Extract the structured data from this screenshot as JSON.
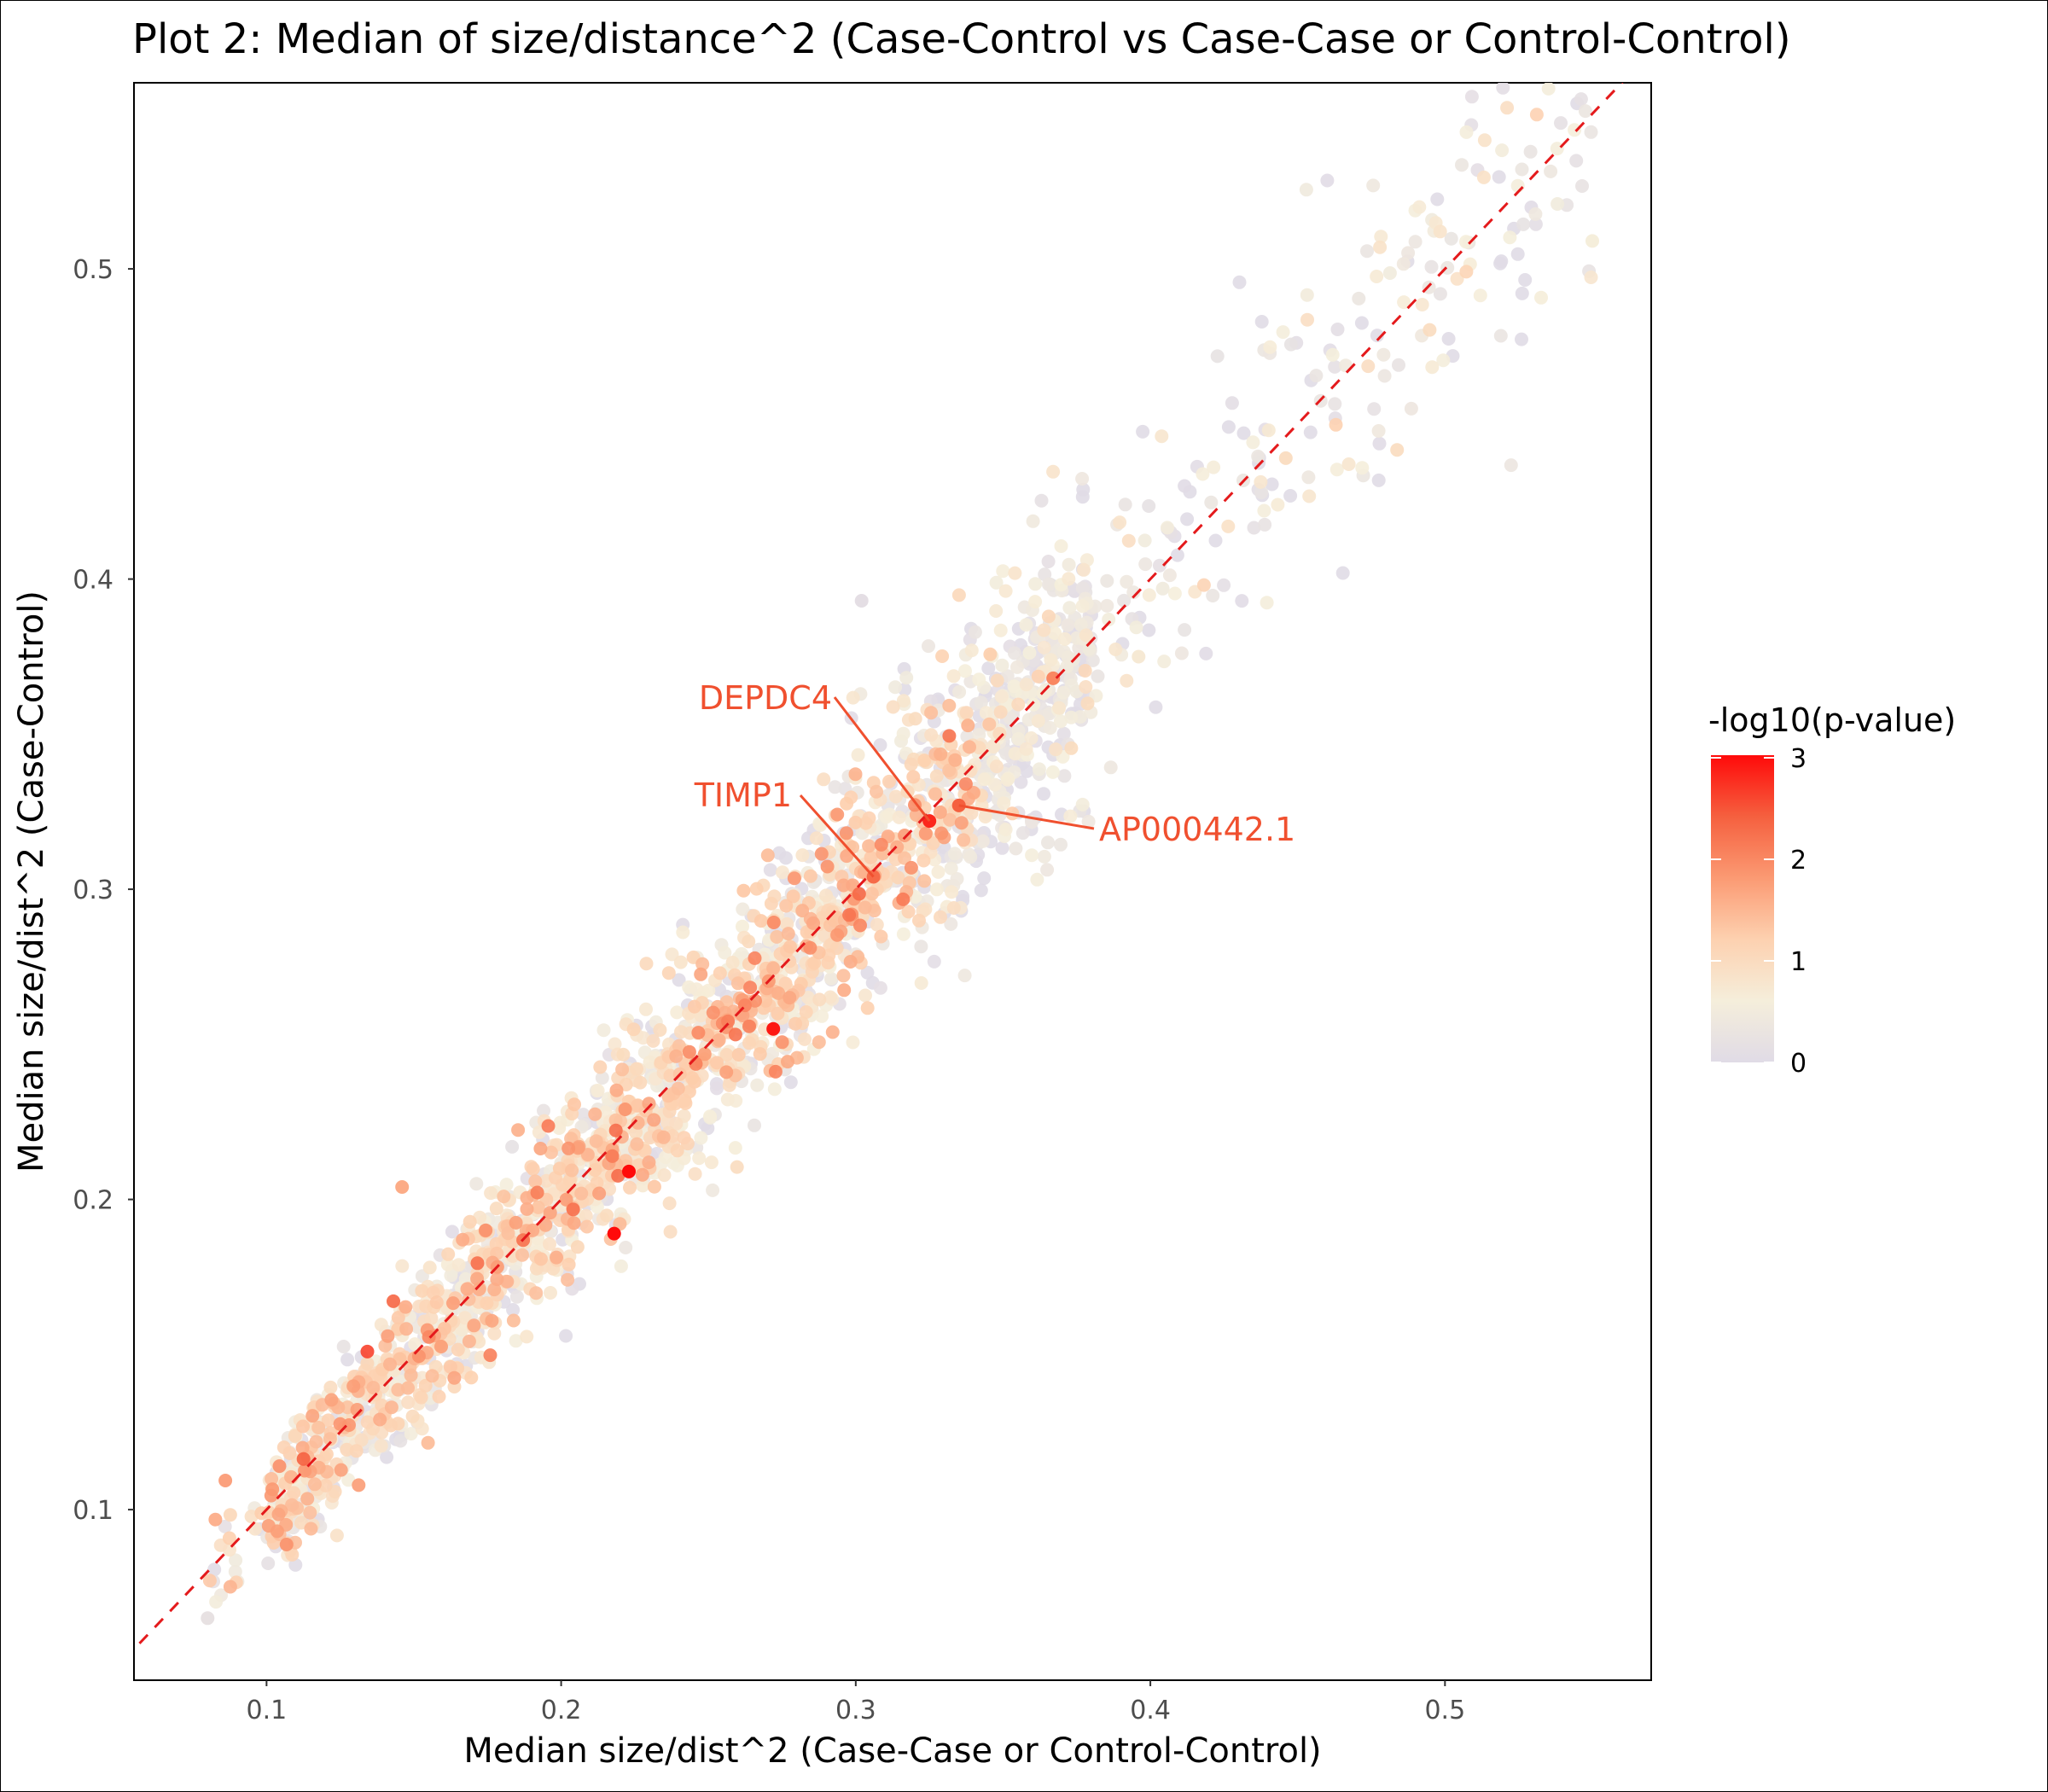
{
  "chart_data": {
    "type": "scatter",
    "title": "Plot 2: Median of size/distance^2 (Case-Control vs Case-Case or Control-Control)",
    "xlabel": "Median size/dist^2 (Case-Case or Control-Control)",
    "ylabel": "Median size/dist^2 (Case-Control)",
    "xlim": [
      0.055,
      0.57
    ],
    "ylim": [
      0.045,
      0.56
    ],
    "xticks": [
      "0.1",
      "0.2",
      "0.3",
      "0.4",
      "0.5"
    ],
    "yticks": [
      "0.1",
      "0.2",
      "0.3",
      "0.4",
      "0.5"
    ],
    "reference_line": {
      "type": "y=x",
      "style": "dashed",
      "color": "#e41a1c"
    },
    "color_scale": {
      "title": "-log10(p-value)",
      "min": 0,
      "max": 3,
      "ticks": [
        "0",
        "1",
        "2",
        "3"
      ],
      "colors": [
        "#e0dbe6",
        "#f5eedb",
        "#fdd1b0",
        "#fb9a73",
        "#f5603f",
        "#ff0a0a"
      ]
    },
    "legend_position": "right",
    "grid": false,
    "points_summary": {
      "approx_count": 2500,
      "trend": "clustered along y = x",
      "x_range": [
        0.08,
        0.55
      ]
    },
    "points": [
      {
        "x": 0.325,
        "y": 0.322,
        "v": 2.8
      },
      {
        "x": 0.272,
        "y": 0.255,
        "v": 2.9
      },
      {
        "x": 0.223,
        "y": 0.209,
        "v": 3.0
      },
      {
        "x": 0.218,
        "y": 0.189,
        "v": 3.0
      },
      {
        "x": 0.306,
        "y": 0.304,
        "v": 2.3
      },
      {
        "x": 0.335,
        "y": 0.327,
        "v": 2.4
      },
      {
        "x": 0.146,
        "y": 0.204,
        "v": 1.6
      },
      {
        "x": 0.55,
        "y": 0.509,
        "v": 0.6
      },
      {
        "x": 0.08,
        "y": 0.065,
        "v": 0.2
      },
      {
        "x": 0.396,
        "y": 0.375,
        "v": 0.7
      },
      {
        "x": 0.302,
        "y": 0.393,
        "v": 0.1
      },
      {
        "x": 0.367,
        "y": 0.368,
        "v": 2.0
      }
    ],
    "annotations": [
      {
        "label": "DEPDC4",
        "x": 0.325,
        "y": 0.322,
        "color": "#f0502f"
      },
      {
        "label": "TIMP1",
        "x": 0.306,
        "y": 0.304,
        "color": "#f0502f"
      },
      {
        "label": "AP000442.1",
        "x": 0.335,
        "y": 0.327,
        "color": "#f0502f"
      }
    ]
  }
}
